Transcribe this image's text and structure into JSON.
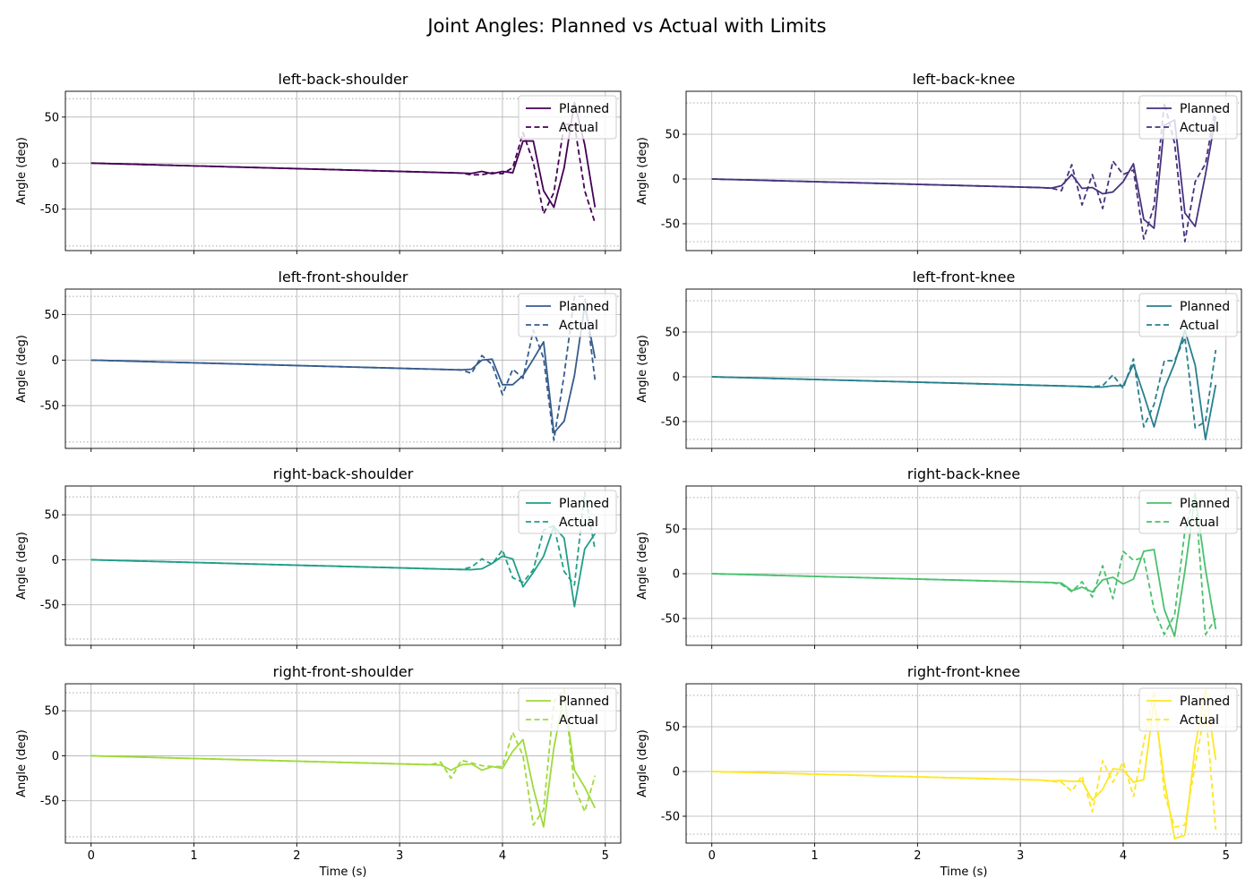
{
  "title": "Joint Angles: Planned vs Actual with Limits",
  "chart_data": {
    "type": "line",
    "title": "Joint Angles: Planned vs Actual with Limits",
    "xlabel": "Time (s)",
    "ylabel": "Angle (deg)",
    "legend": [
      "Planned",
      "Actual"
    ],
    "legend_placement": "upper-right",
    "grid": true,
    "x": [
      0.0,
      0.1,
      0.2,
      0.3,
      0.4,
      0.5,
      0.6,
      0.7,
      0.8,
      0.9,
      1.0,
      1.1,
      1.2,
      1.3,
      1.4,
      1.5,
      1.6,
      1.7,
      1.8,
      1.9,
      2.0,
      2.1,
      2.2,
      2.3,
      2.4,
      2.5,
      2.6,
      2.7,
      2.8,
      2.9,
      3.0,
      3.1,
      3.2,
      3.3,
      3.4,
      3.5,
      3.6,
      3.7,
      3.8,
      3.9,
      4.0,
      4.1,
      4.2,
      4.3,
      4.4,
      4.5,
      4.6,
      4.7,
      4.8,
      4.9
    ],
    "xticks": [
      "0",
      "1",
      "2",
      "3",
      "4",
      "5"
    ],
    "panels": [
      {
        "joint": "left-back-shoulder",
        "color": "#440154",
        "ylim": [
          -95,
          78
        ],
        "yticks": [
          -50,
          0,
          50
        ],
        "limits": [
          -90,
          70
        ],
        "planned": [
          0.0,
          -0.3,
          -0.6,
          -0.9,
          -1.2,
          -1.5,
          -1.8,
          -2.1,
          -2.4,
          -2.7,
          -3.0,
          -3.3,
          -3.6,
          -3.9,
          -4.2,
          -4.5,
          -4.8,
          -5.1,
          -5.4,
          -5.7,
          -6.0,
          -6.3,
          -6.6,
          -6.9,
          -7.2,
          -7.5,
          -7.8,
          -8.1,
          -8.4,
          -8.7,
          -9.0,
          -9.3,
          -9.6,
          -9.9,
          -10.2,
          -10.5,
          -10.8,
          -11.2,
          -9.0,
          -11.5,
          -9.0,
          -10.5,
          24,
          24,
          -30,
          -48,
          -5,
          66,
          20,
          -48
        ],
        "actual": [
          0.0,
          -0.3,
          -0.6,
          -0.9,
          -1.2,
          -1.5,
          -1.8,
          -2.1,
          -2.4,
          -2.7,
          -3.0,
          -3.3,
          -3.6,
          -3.9,
          -4.2,
          -4.5,
          -4.8,
          -5.1,
          -5.4,
          -5.7,
          -6.0,
          -6.3,
          -6.6,
          -6.9,
          -7.2,
          -7.5,
          -7.8,
          -8.1,
          -8.4,
          -8.7,
          -9.0,
          -9.3,
          -9.6,
          -9.9,
          -10.2,
          -10.5,
          -10.8,
          -12.8,
          -12.5,
          -10.5,
          -11.5,
          -5.0,
          33,
          1,
          -55,
          -32,
          42,
          42,
          -30,
          -65
        ]
      },
      {
        "joint": "left-back-knee",
        "color": "#46327e",
        "ylim": [
          -80,
          98
        ],
        "yticks": [
          -50,
          0,
          50
        ],
        "limits": [
          -70,
          85
        ],
        "planned": [
          0.0,
          -0.3,
          -0.6,
          -0.9,
          -1.2,
          -1.5,
          -1.8,
          -2.1,
          -2.4,
          -2.7,
          -3.0,
          -3.3,
          -3.6,
          -3.9,
          -4.2,
          -4.5,
          -4.8,
          -5.1,
          -5.4,
          -5.7,
          -6.0,
          -6.3,
          -6.6,
          -6.9,
          -7.2,
          -7.5,
          -7.8,
          -8.1,
          -8.4,
          -8.7,
          -9.0,
          -9.3,
          -9.6,
          -10.2,
          -7.5,
          5.0,
          -10.5,
          -9.5,
          -16.5,
          -14.5,
          -3.0,
          17,
          -45,
          -55,
          60,
          66,
          -38,
          -53,
          5,
          70
        ],
        "actual": [
          0.0,
          -0.3,
          -0.6,
          -0.9,
          -1.2,
          -1.5,
          -1.8,
          -2.1,
          -2.4,
          -2.7,
          -3.0,
          -3.3,
          -3.6,
          -3.9,
          -4.2,
          -4.5,
          -4.8,
          -5.1,
          -5.4,
          -5.7,
          -6.0,
          -6.3,
          -6.6,
          -6.9,
          -7.2,
          -7.5,
          -7.8,
          -8.1,
          -8.4,
          -8.7,
          -9.0,
          -9.3,
          -9.6,
          -10.2,
          -13.0,
          16,
          -29,
          5.0,
          -33,
          20,
          5.0,
          10,
          -67,
          -30,
          85,
          40,
          -70,
          -3.0,
          17,
          82
        ]
      },
      {
        "joint": "left-front-shoulder",
        "color": "#365c8d",
        "ylim": [
          -97,
          78
        ],
        "yticks": [
          -50,
          0,
          50
        ],
        "limits": [
          -90,
          70
        ],
        "planned": [
          0.0,
          -0.3,
          -0.6,
          -0.9,
          -1.2,
          -1.5,
          -1.8,
          -2.1,
          -2.4,
          -2.7,
          -3.0,
          -3.3,
          -3.6,
          -3.9,
          -4.2,
          -4.5,
          -4.8,
          -5.1,
          -5.4,
          -5.7,
          -6.0,
          -6.3,
          -6.6,
          -6.9,
          -7.2,
          -7.5,
          -7.8,
          -8.1,
          -8.4,
          -8.7,
          -9.0,
          -9.3,
          -9.6,
          -9.9,
          -10.2,
          -10.5,
          -10.8,
          -10.0,
          0.0,
          1.0,
          -27,
          -27,
          -17,
          1.0,
          20,
          -80,
          -67,
          -17,
          60,
          2.0
        ],
        "actual": [
          0.0,
          -0.3,
          -0.6,
          -0.9,
          -1.2,
          -1.5,
          -1.8,
          -2.1,
          -2.4,
          -2.7,
          -3.0,
          -3.3,
          -3.6,
          -3.9,
          -4.2,
          -4.5,
          -4.8,
          -5.1,
          -5.4,
          -5.7,
          -6.0,
          -6.3,
          -6.6,
          -6.9,
          -7.2,
          -7.5,
          -7.8,
          -8.1,
          -8.4,
          -8.7,
          -9.0,
          -9.3,
          -9.6,
          -9.9,
          -10.2,
          -10.5,
          -10.8,
          -14.5,
          5.0,
          -5.0,
          -38,
          -10,
          -20,
          33,
          2.0,
          -88,
          -16,
          70,
          70,
          -22
        ]
      },
      {
        "joint": "left-front-knee",
        "color": "#277f8e",
        "ylim": [
          -80,
          98
        ],
        "yticks": [
          -50,
          0,
          50
        ],
        "limits": [
          -70,
          85
        ],
        "planned": [
          0.0,
          -0.3,
          -0.6,
          -0.9,
          -1.2,
          -1.5,
          -1.8,
          -2.1,
          -2.4,
          -2.7,
          -3.0,
          -3.3,
          -3.6,
          -3.9,
          -4.2,
          -4.5,
          -4.8,
          -5.1,
          -5.4,
          -5.7,
          -6.0,
          -6.3,
          -6.6,
          -6.9,
          -7.2,
          -7.5,
          -7.8,
          -8.1,
          -8.4,
          -8.7,
          -9.0,
          -9.3,
          -9.6,
          -9.9,
          -10.2,
          -10.5,
          -10.8,
          -11.5,
          -11.5,
          -10.0,
          -10.0,
          14,
          -20,
          -56,
          -13,
          15,
          52,
          13,
          -70,
          -9.0
        ],
        "actual": [
          0.0,
          -0.3,
          -0.6,
          -0.9,
          -1.2,
          -1.5,
          -1.8,
          -2.1,
          -2.4,
          -2.7,
          -3.0,
          -3.3,
          -3.6,
          -3.9,
          -4.2,
          -4.5,
          -4.8,
          -5.1,
          -5.4,
          -5.7,
          -6.0,
          -6.3,
          -6.6,
          -6.9,
          -7.2,
          -7.5,
          -7.8,
          -8.1,
          -8.4,
          -8.7,
          -9.0,
          -9.3,
          -9.6,
          -9.9,
          -10.2,
          -10.5,
          -10.8,
          -11.0,
          -10.0,
          2.0,
          -13,
          20,
          -56,
          -31,
          18,
          18,
          44,
          -57,
          -50,
          30
        ]
      },
      {
        "joint": "right-back-shoulder",
        "color": "#1f9e89",
        "ylim": [
          -95,
          82
        ],
        "yticks": [
          -50,
          0,
          50
        ],
        "limits": [
          -88,
          70
        ],
        "planned": [
          0.0,
          -0.3,
          -0.6,
          -0.9,
          -1.2,
          -1.5,
          -1.8,
          -2.1,
          -2.4,
          -2.7,
          -3.0,
          -3.3,
          -3.6,
          -3.9,
          -4.2,
          -4.5,
          -4.8,
          -5.1,
          -5.4,
          -5.7,
          -6.0,
          -6.3,
          -6.6,
          -6.9,
          -7.2,
          -7.5,
          -7.8,
          -8.1,
          -8.4,
          -8.7,
          -9.0,
          -9.3,
          -9.6,
          -9.9,
          -10.2,
          -10.5,
          -10.8,
          -11.0,
          -10.0,
          -4.0,
          4.0,
          1.0,
          -30,
          -14,
          4.0,
          37,
          24,
          -52,
          12,
          29
        ],
        "actual": [
          0.0,
          -0.3,
          -0.6,
          -0.9,
          -1.2,
          -1.5,
          -1.8,
          -2.1,
          -2.4,
          -2.7,
          -3.0,
          -3.3,
          -3.6,
          -3.9,
          -4.2,
          -4.5,
          -4.8,
          -5.1,
          -5.4,
          -5.7,
          -6.0,
          -6.3,
          -6.6,
          -6.9,
          -7.2,
          -7.5,
          -7.8,
          -8.1,
          -8.4,
          -8.7,
          -9.0,
          -9.3,
          -9.6,
          -9.9,
          -10.2,
          -10.5,
          -10.8,
          -8.0,
          1.0,
          -5.0,
          11,
          -20,
          -25,
          -11,
          33,
          38,
          -13,
          -28,
          75,
          11
        ]
      },
      {
        "joint": "right-back-knee",
        "color": "#4ac16d",
        "ylim": [
          -80,
          98
        ],
        "yticks": [
          -50,
          0,
          50
        ],
        "limits": [
          -70,
          85
        ],
        "planned": [
          0.0,
          -0.3,
          -0.6,
          -0.9,
          -1.2,
          -1.5,
          -1.8,
          -2.1,
          -2.4,
          -2.7,
          -3.0,
          -3.3,
          -3.6,
          -3.9,
          -4.2,
          -4.5,
          -4.8,
          -5.1,
          -5.4,
          -5.7,
          -6.0,
          -6.3,
          -6.6,
          -6.9,
          -7.2,
          -7.5,
          -7.8,
          -8.1,
          -8.4,
          -8.7,
          -9.0,
          -9.3,
          -9.6,
          -9.9,
          -10.5,
          -19.0,
          -15.0,
          -20.5,
          -7.0,
          -4.0,
          -11.5,
          -6.0,
          25,
          27,
          -40,
          -70,
          3.0,
          88,
          5.0,
          -62
        ],
        "actual": [
          0.0,
          -0.3,
          -0.6,
          -0.9,
          -1.2,
          -1.5,
          -1.8,
          -2.1,
          -2.4,
          -2.7,
          -3.0,
          -3.3,
          -3.6,
          -3.9,
          -4.2,
          -4.5,
          -4.8,
          -5.1,
          -5.4,
          -5.7,
          -6.0,
          -6.3,
          -6.6,
          -6.9,
          -7.2,
          -7.5,
          -7.8,
          -8.1,
          -8.4,
          -8.7,
          -9.0,
          -9.3,
          -9.6,
          -9.9,
          -12.0,
          -20.0,
          -9.0,
          -26.0,
          9.0,
          -28,
          25,
          15,
          18,
          -40,
          -68,
          -46,
          48,
          90,
          -68,
          -50
        ]
      },
      {
        "joint": "right-front-shoulder",
        "color": "#9fda3a",
        "ylim": [
          -97,
          80
        ],
        "yticks": [
          -50,
          0,
          50
        ],
        "limits": [
          -90,
          70
        ],
        "planned": [
          0.0,
          -0.3,
          -0.6,
          -0.9,
          -1.2,
          -1.5,
          -1.8,
          -2.1,
          -2.4,
          -2.7,
          -3.0,
          -3.3,
          -3.6,
          -3.9,
          -4.2,
          -4.5,
          -4.8,
          -5.1,
          -5.4,
          -5.7,
          -6.0,
          -6.3,
          -6.6,
          -6.9,
          -7.2,
          -7.5,
          -7.8,
          -8.1,
          -8.4,
          -8.7,
          -9.0,
          -9.3,
          -9.6,
          -9.9,
          -10.2,
          -16.0,
          -10.0,
          -9.0,
          -16.0,
          -12.0,
          -14.0,
          5.0,
          18,
          -36,
          -79,
          9.0,
          68,
          -16,
          -35,
          -58
        ],
        "actual": [
          0.0,
          -0.3,
          -0.6,
          -0.9,
          -1.2,
          -1.5,
          -1.8,
          -2.1,
          -2.4,
          -2.7,
          -3.0,
          -3.3,
          -3.6,
          -3.9,
          -4.2,
          -4.5,
          -4.8,
          -5.1,
          -5.4,
          -5.7,
          -6.0,
          -6.3,
          -6.6,
          -6.9,
          -7.2,
          -7.5,
          -7.8,
          -8.1,
          -8.4,
          -8.7,
          -9.0,
          -9.3,
          -9.6,
          -9.9,
          -7.0,
          -25.0,
          -5.0,
          -8.0,
          -11.0,
          -12.0,
          -12.0,
          26,
          0.0,
          -77,
          -60,
          60,
          74,
          -35,
          -62,
          -22
        ]
      },
      {
        "joint": "right-front-knee",
        "color": "#fde725",
        "ylim": [
          -80,
          98
        ],
        "yticks": [
          -50,
          0,
          50
        ],
        "limits": [
          -70,
          85
        ],
        "planned": [
          0.0,
          -0.3,
          -0.6,
          -0.9,
          -1.2,
          -1.5,
          -1.8,
          -2.1,
          -2.4,
          -2.7,
          -3.0,
          -3.3,
          -3.6,
          -3.9,
          -4.2,
          -4.5,
          -4.8,
          -5.1,
          -5.4,
          -5.7,
          -6.0,
          -6.3,
          -6.6,
          -6.9,
          -7.2,
          -7.5,
          -7.8,
          -8.1,
          -8.4,
          -8.7,
          -9.0,
          -9.3,
          -9.6,
          -10.5,
          -10.2,
          -11.0,
          -10.8,
          -32.0,
          -20.0,
          3.0,
          2.0,
          -12.0,
          -9.0,
          78,
          -10,
          -75,
          -71,
          28,
          92,
          13
        ],
        "actual": [
          0.0,
          -0.3,
          -0.6,
          -0.9,
          -1.2,
          -1.5,
          -1.8,
          -2.1,
          -2.4,
          -2.7,
          -3.0,
          -3.3,
          -3.6,
          -3.9,
          -4.2,
          -4.5,
          -4.8,
          -5.1,
          -5.4,
          -5.7,
          -6.0,
          -6.3,
          -6.6,
          -6.9,
          -7.2,
          -7.5,
          -7.8,
          -8.1,
          -8.4,
          -8.7,
          -9.0,
          -9.3,
          -9.6,
          -11.0,
          -12.0,
          -22.0,
          -5.0,
          -45.0,
          12.0,
          -12.0,
          11.0,
          -28.0,
          32.0,
          90,
          -25,
          -62,
          -60,
          8.0,
          70,
          -65
        ]
      }
    ]
  }
}
